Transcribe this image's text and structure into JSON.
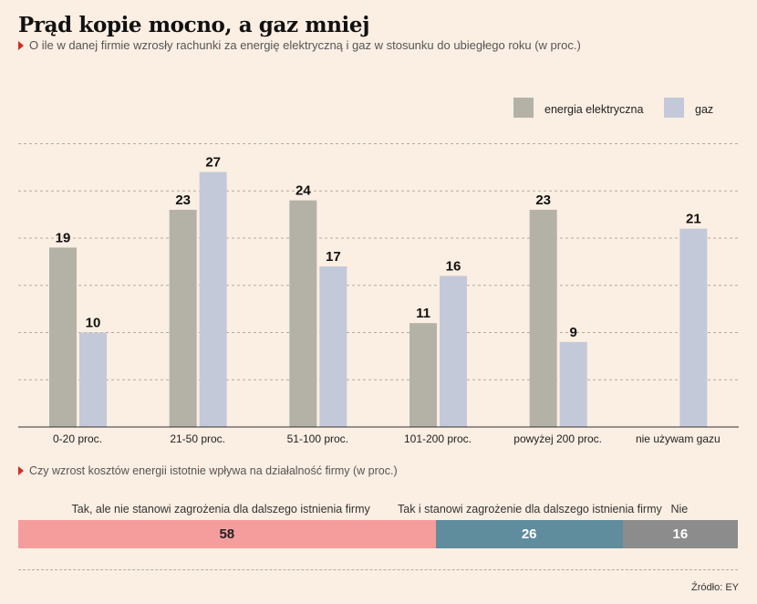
{
  "title": "Prąd kopie mocno, a gaz mniej",
  "subtitle": "O ile w danej firmie wzrosły rachunki za energię elektryczną i gaz w stosunku do ubiegłego roku (w proc.)",
  "chart_data": [
    {
      "type": "bar",
      "categories": [
        "0-20 proc.",
        "21-50 proc.",
        "51-100 proc.",
        "101-200 proc.",
        "powyżej 200 proc.",
        "nie używam gazu"
      ],
      "series": [
        {
          "name": "energia elektryczna",
          "color": "#b4b2a7",
          "values": [
            19,
            23,
            24,
            11,
            23,
            null
          ]
        },
        {
          "name": "gaz",
          "color": "#c3c9d8",
          "values": [
            10,
            27,
            17,
            16,
            9,
            21
          ]
        }
      ],
      "ylim": [
        0,
        30
      ],
      "grid": true,
      "legend": "top-right"
    },
    {
      "type": "bar",
      "title": "Czy wzrost kosztów energii istotnie wpływa na działalność firmy (w proc.)",
      "stacked": true,
      "orientation": "horizontal",
      "series": [
        {
          "name": "Tak, ale nie stanowi zagrożenia dla dalszego istnienia firmy",
          "value": 58,
          "color": "#f59d9d"
        },
        {
          "name": "Tak i stanowi zagrożenie dla dalszego istnienia firmy",
          "value": 26,
          "color": "#5f8d9d"
        },
        {
          "name": "Nie",
          "value": 16,
          "color": "#8c8c8c"
        }
      ]
    }
  ],
  "source": "Źródło: EY"
}
